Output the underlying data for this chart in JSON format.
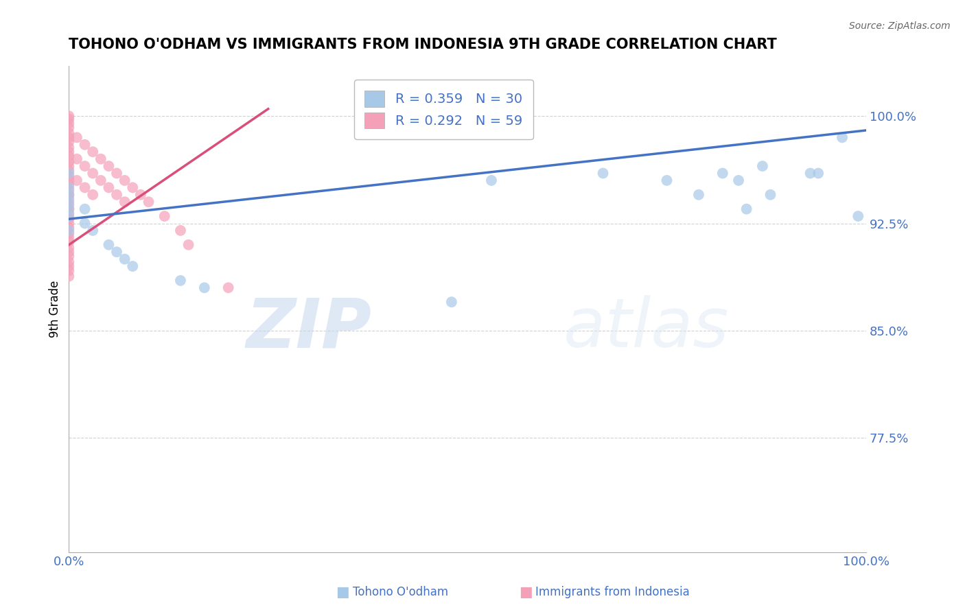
{
  "title": "TOHONO O'ODHAM VS IMMIGRANTS FROM INDONESIA 9TH GRADE CORRELATION CHART",
  "source": "Source: ZipAtlas.com",
  "ylabel": "9th Grade",
  "xlim": [
    0.0,
    1.0
  ],
  "ylim": [
    0.695,
    1.035
  ],
  "yticks": [
    0.775,
    0.85,
    0.925,
    1.0
  ],
  "ytick_labels": [
    "77.5%",
    "85.0%",
    "92.5%",
    "100.0%"
  ],
  "legend_blue_r": "R = 0.359",
  "legend_blue_n": "N = 30",
  "legend_pink_r": "R = 0.292",
  "legend_pink_n": "N = 59",
  "blue_color": "#a8c8e8",
  "pink_color": "#f4a0b8",
  "blue_line_color": "#4472c4",
  "pink_line_color": "#d94f7a",
  "watermark_zip": "ZIP",
  "watermark_atlas": "atlas",
  "blue_scatter_x": [
    0.0,
    0.0,
    0.0,
    0.0,
    0.0,
    0.0,
    0.0,
    0.02,
    0.02,
    0.03,
    0.05,
    0.06,
    0.07,
    0.08,
    0.14,
    0.17,
    0.48,
    0.53,
    0.67,
    0.75,
    0.79,
    0.82,
    0.84,
    0.85,
    0.87,
    0.88,
    0.93,
    0.94,
    0.97,
    0.99
  ],
  "blue_scatter_y": [
    0.96,
    0.95,
    0.945,
    0.94,
    0.935,
    0.93,
    0.92,
    0.935,
    0.925,
    0.92,
    0.91,
    0.905,
    0.9,
    0.895,
    0.885,
    0.88,
    0.87,
    0.955,
    0.96,
    0.955,
    0.945,
    0.96,
    0.955,
    0.935,
    0.965,
    0.945,
    0.96,
    0.96,
    0.985,
    0.93
  ],
  "pink_scatter_x": [
    0.0,
    0.0,
    0.0,
    0.0,
    0.0,
    0.0,
    0.0,
    0.0,
    0.0,
    0.0,
    0.0,
    0.0,
    0.0,
    0.0,
    0.0,
    0.0,
    0.0,
    0.0,
    0.0,
    0.0,
    0.0,
    0.0,
    0.0,
    0.0,
    0.0,
    0.0,
    0.0,
    0.0,
    0.0,
    0.0,
    0.0,
    0.0,
    0.0,
    0.0,
    0.0,
    0.01,
    0.01,
    0.01,
    0.02,
    0.02,
    0.02,
    0.03,
    0.03,
    0.03,
    0.04,
    0.04,
    0.05,
    0.05,
    0.06,
    0.06,
    0.07,
    0.07,
    0.08,
    0.09,
    0.1,
    0.12,
    0.14,
    0.15,
    0.2
  ],
  "pink_scatter_y": [
    1.0,
    0.998,
    0.995,
    0.992,
    0.988,
    0.985,
    0.982,
    0.978,
    0.975,
    0.972,
    0.968,
    0.965,
    0.962,
    0.958,
    0.955,
    0.952,
    0.948,
    0.945,
    0.942,
    0.938,
    0.935,
    0.932,
    0.928,
    0.925,
    0.922,
    0.918,
    0.915,
    0.912,
    0.908,
    0.905,
    0.902,
    0.898,
    0.895,
    0.892,
    0.888,
    0.985,
    0.97,
    0.955,
    0.98,
    0.965,
    0.95,
    0.975,
    0.96,
    0.945,
    0.97,
    0.955,
    0.965,
    0.95,
    0.96,
    0.945,
    0.955,
    0.94,
    0.95,
    0.945,
    0.94,
    0.93,
    0.92,
    0.91,
    0.88
  ],
  "blue_trend_x": [
    0.0,
    1.0
  ],
  "blue_trend_y": [
    0.928,
    0.99
  ],
  "pink_trend_x": [
    0.0,
    0.25
  ],
  "pink_trend_y": [
    0.91,
    1.005
  ]
}
